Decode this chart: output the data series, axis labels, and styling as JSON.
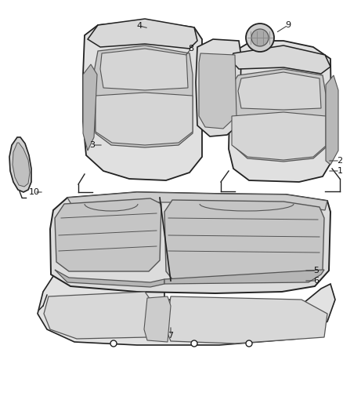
{
  "bg_color": "#ffffff",
  "line_color": "#555555",
  "line_color_dark": "#222222",
  "fill_color_seat": "#d8d8d8",
  "fill_color_light": "#e8e8e8",
  "fig_width": 4.38,
  "fig_height": 5.33,
  "dpi": 100
}
